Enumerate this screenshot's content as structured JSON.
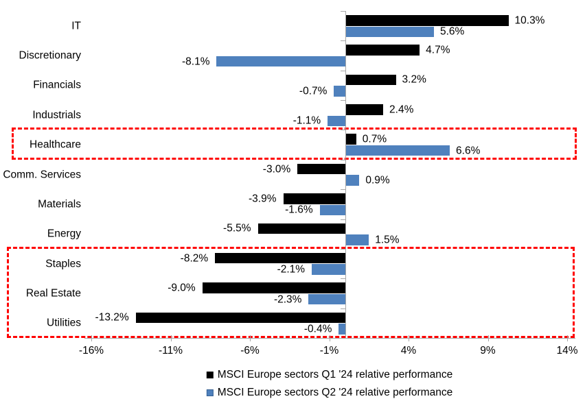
{
  "chart_data": {
    "type": "bar",
    "orientation": "horizontal",
    "title": "",
    "categories": [
      "IT",
      "Discretionary",
      "Financials",
      "Industrials",
      "Healthcare",
      "Comm. Services",
      "Materials",
      "Energy",
      "Staples",
      "Real Estate",
      "Utilities"
    ],
    "series": [
      {
        "name": "MSCI Europe sectors Q1 '24 relative performance",
        "color": "#000000",
        "values": [
          10.3,
          4.7,
          3.2,
          2.4,
          0.7,
          -3.0,
          -3.9,
          -5.5,
          -8.2,
          -9.0,
          -13.2
        ],
        "labels": [
          "10.3%",
          "4.7%",
          "3.2%",
          "2.4%",
          "0.7%",
          "-3.0%",
          "-3.9%",
          "-5.5%",
          "-8.2%",
          "-9.0%",
          "-13.2%"
        ]
      },
      {
        "name": "MSCI Europe sectors Q2 '24 relative performance",
        "color": "#4f81bd",
        "swatch_border": "#366092",
        "values": [
          5.6,
          -8.1,
          -0.7,
          -1.1,
          6.6,
          0.9,
          -1.6,
          1.5,
          -2.1,
          -2.3,
          -0.4
        ],
        "labels": [
          "5.6%",
          "-8.1%",
          "-0.7%",
          "-1.1%",
          "6.6%",
          "0.9%",
          "-1.6%",
          "1.5%",
          "-2.1%",
          "-2.3%",
          "-0.4%"
        ]
      }
    ],
    "xlabel": "",
    "ylabel": "",
    "x_ticks": [
      "-16%",
      "-11%",
      "-6%",
      "-1%",
      "4%",
      "9%",
      "14%"
    ],
    "x_tick_values": [
      -16,
      -11,
      -6,
      -1,
      4,
      9,
      14
    ],
    "xlim": [
      -16,
      14
    ],
    "grid": "off",
    "legend_position": "bottom",
    "axis_color": "#a6a6a6",
    "highlight_color": "#ff0000",
    "highlights": [
      {
        "categories": [
          "Healthcare"
        ]
      },
      {
        "categories": [
          "Staples",
          "Real Estate",
          "Utilities"
        ]
      }
    ]
  }
}
